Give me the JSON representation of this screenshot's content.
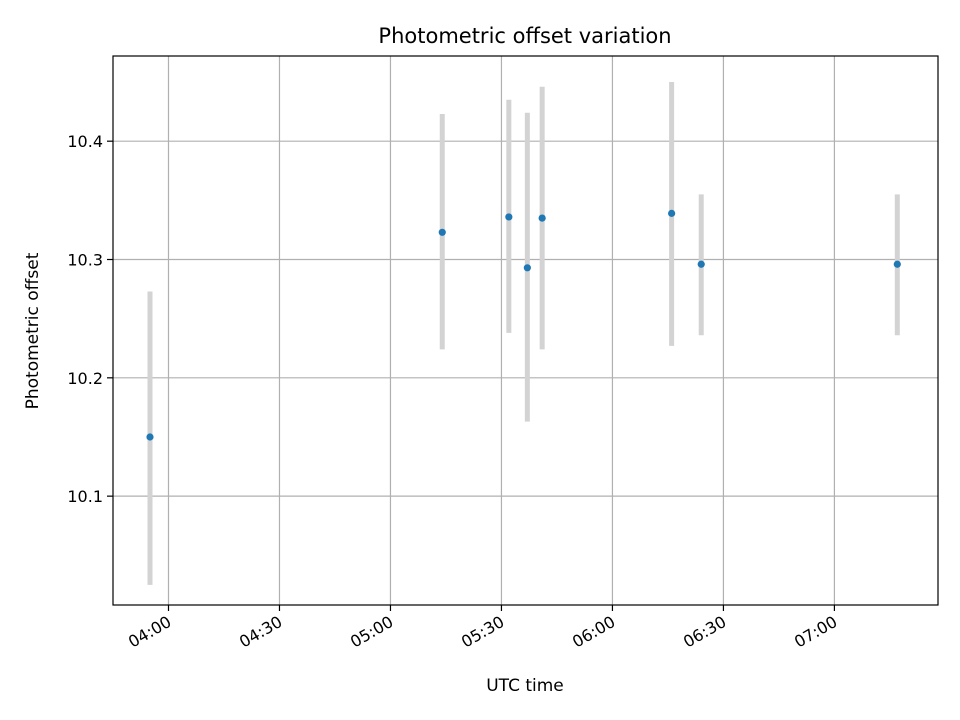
{
  "chart_data": {
    "type": "scatter",
    "title": "Photometric offset variation",
    "xlabel": "UTC time",
    "ylabel": "Photometric offset",
    "xlim": [
      "03:45",
      "07:28"
    ],
    "ylim": [
      10.008,
      10.472
    ],
    "x_ticks": [
      "04:00",
      "04:30",
      "05:00",
      "05:30",
      "06:00",
      "06:30",
      "07:00"
    ],
    "y_ticks": [
      10.1,
      10.2,
      10.3,
      10.4
    ],
    "grid": true,
    "colors": {
      "point": "#1f77b4",
      "errorbar": "#d3d3d3",
      "grid": "#b0b0b0",
      "axes": "#000000"
    },
    "series": [
      {
        "points": [
          {
            "x": "03:55",
            "y": 10.15,
            "err_low": 10.025,
            "err_high": 10.273
          },
          {
            "x": "05:14",
            "y": 10.323,
            "err_low": 10.224,
            "err_high": 10.423
          },
          {
            "x": "05:32",
            "y": 10.336,
            "err_low": 10.238,
            "err_high": 10.435
          },
          {
            "x": "05:37",
            "y": 10.293,
            "err_low": 10.163,
            "err_high": 10.424
          },
          {
            "x": "05:41",
            "y": 10.335,
            "err_low": 10.224,
            "err_high": 10.446
          },
          {
            "x": "06:16",
            "y": 10.339,
            "err_low": 10.227,
            "err_high": 10.45
          },
          {
            "x": "06:24",
            "y": 10.296,
            "err_low": 10.236,
            "err_high": 10.355
          },
          {
            "x": "07:17",
            "y": 10.296,
            "err_low": 10.236,
            "err_high": 10.355
          }
        ]
      }
    ]
  }
}
